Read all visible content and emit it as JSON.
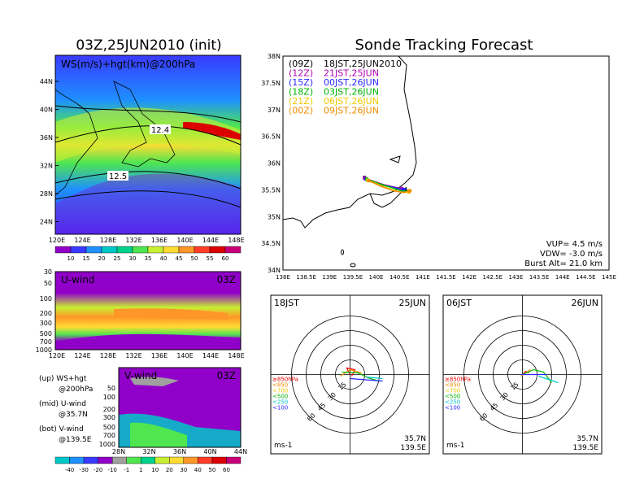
{
  "main_title": "Sonde Tracking Forecast",
  "init_title": "03Z,25JUN2010  (init)",
  "ws_panel": {
    "label": "WS(m/s)+hgt(km)@200hPa",
    "contour_labels": [
      "12.4",
      "12.5"
    ],
    "lat_ticks": [
      "44N",
      "40N",
      "36N",
      "32N",
      "28N",
      "24N"
    ],
    "lon_ticks": [
      "120E",
      "124E",
      "128E",
      "132E",
      "136E",
      "140E",
      "144E",
      "148E"
    ],
    "colorbar": {
      "values": [
        "10",
        "15",
        "20",
        "25",
        "30",
        "35",
        "40",
        "45",
        "50",
        "55",
        "60"
      ],
      "colors": [
        "#9000c8",
        "#3a3aff",
        "#1e90ff",
        "#00c8c8",
        "#00d28c",
        "#50e650",
        "#c8f032",
        "#ffdc32",
        "#ff9628",
        "#ff3c28",
        "#dc0000",
        "#c80078"
      ]
    }
  },
  "u_panel": {
    "label": "U-wind",
    "time": "03Z",
    "y_ticks": [
      "30",
      "50",
      "100",
      "200",
      "300",
      "500",
      "700",
      "1000"
    ],
    "x_ticks": [
      "120E",
      "124E",
      "128E",
      "132E",
      "136E",
      "140E",
      "144E",
      "148E"
    ]
  },
  "v_panel": {
    "label": "V-wind",
    "time": "03Z",
    "y_ticks": [
      "50",
      "100",
      "200",
      "300",
      "500",
      "700",
      "1000"
    ],
    "x_ticks": [
      "28N",
      "32N",
      "36N",
      "40N",
      "44N"
    ]
  },
  "legend_notes": [
    {
      "a": "(up) WS+hgt",
      "b": "@200hPa"
    },
    {
      "a": "(mid) U-wind",
      "b": "@35.7N"
    },
    {
      "a": "(bot) V-wind",
      "b": "@139.5E"
    }
  ],
  "uv_colorbar": {
    "values": [
      "-40",
      "-30",
      "-20",
      "-10",
      "-1",
      "1",
      "10",
      "20",
      "30",
      "40",
      "50",
      "60"
    ],
    "colors": [
      "#00c8c8",
      "#1e90ff",
      "#3a3aff",
      "#9000c8",
      "#a0a0a0",
      "#50e650",
      "#00d28c",
      "#c8f032",
      "#ffdc32",
      "#ff9628",
      "#ff3c28",
      "#dc0000",
      "#c80078"
    ]
  },
  "track_map": {
    "lat_ticks": [
      "38N",
      "37.5N",
      "37N",
      "36.5N",
      "36N",
      "35.5N",
      "35N",
      "34.5N",
      "34N"
    ],
    "lon_ticks": [
      "138E",
      "138.5E",
      "139E",
      "139.5E",
      "140E",
      "140.5E",
      "141E",
      "141.5E",
      "142E",
      "142.5E",
      "143E",
      "143.5E",
      "144E",
      "144.5E",
      "145E"
    ],
    "legend": [
      {
        "code": "(09Z)",
        "text": "18JST,25JUN2010",
        "color": "#000000"
      },
      {
        "code": "(12Z)",
        "text": "21JST,25JUN",
        "color": "#b400b4"
      },
      {
        "code": "(15Z)",
        "text": "00JST,26JUN",
        "color": "#2828ff"
      },
      {
        "code": "(18Z)",
        "text": "03JST,26JUN",
        "color": "#00b400"
      },
      {
        "code": "(21Z)",
        "text": "06JST,26JUN",
        "color": "#f0c800"
      },
      {
        "code": "(00Z)",
        "text": "09JST,26JUN",
        "color": "#f08c00"
      }
    ],
    "vup": "VUP=  4.5 m/s",
    "vdw": "VDW= -3.0 m/s",
    "burst": "Burst Alt= 21.0 km"
  },
  "hodo_left": {
    "time": "18JST",
    "date": "25JUN",
    "ring_labels": [
      "15",
      "30",
      "45",
      "60"
    ],
    "levels": [
      "≥850hPa",
      "<850",
      "<700",
      "<500",
      "<250",
      "<100"
    ],
    "level_colors": [
      "#f00000",
      "#f08c00",
      "#f0c800",
      "#00b400",
      "#00c8c8",
      "#2828ff"
    ],
    "lat": "35.7N",
    "lon": "139.5E",
    "unit": "ms-1"
  },
  "hodo_right": {
    "time": "06JST",
    "date": "26JUN",
    "ring_labels": [
      "15",
      "30",
      "45",
      "60"
    ],
    "levels": [
      "≥850hPa",
      "<850",
      "<700",
      "<500",
      "<250",
      "<100"
    ],
    "level_colors": [
      "#f00000",
      "#f08c00",
      "#f0c800",
      "#00b400",
      "#00c8c8",
      "#2828ff"
    ],
    "lat": "35.7N",
    "lon": "139.5E",
    "unit": "ms-1"
  },
  "chart_data": {
    "type": "line",
    "title": "Sonde Tracking Forecast",
    "series": [
      {
        "name": "18JST,25JUN2010",
        "points": [
          [
            139.75,
            35.73
          ],
          [
            139.9,
            35.65
          ],
          [
            140.1,
            35.6
          ],
          [
            140.35,
            35.55
          ],
          [
            140.62,
            35.5
          ]
        ]
      },
      {
        "name": "21JST,25JUN",
        "points": [
          [
            139.75,
            35.72
          ],
          [
            139.95,
            35.66
          ],
          [
            140.15,
            35.6
          ],
          [
            140.4,
            35.55
          ],
          [
            140.55,
            35.52
          ]
        ]
      },
      {
        "name": "00JST,26JUN",
        "points": [
          [
            139.78,
            35.7
          ],
          [
            140.0,
            35.63
          ],
          [
            140.2,
            35.58
          ],
          [
            140.45,
            35.53
          ],
          [
            140.6,
            35.5
          ]
        ]
      },
      {
        "name": "03JST,26JUN",
        "points": [
          [
            139.8,
            35.7
          ],
          [
            140.05,
            35.62
          ],
          [
            140.3,
            35.55
          ],
          [
            140.55,
            35.48
          ],
          [
            140.7,
            35.47
          ]
        ]
      },
      {
        "name": "06JST,26JUN",
        "points": [
          [
            139.82,
            35.68
          ],
          [
            140.1,
            35.58
          ],
          [
            140.35,
            35.5
          ],
          [
            140.55,
            35.45
          ],
          [
            140.7,
            35.46
          ]
        ]
      },
      {
        "name": "09JST,26JUN",
        "points": [
          [
            139.84,
            35.67
          ],
          [
            140.12,
            35.56
          ],
          [
            140.38,
            35.48
          ],
          [
            140.6,
            35.45
          ],
          [
            140.72,
            35.48
          ]
        ]
      }
    ],
    "xlim": [
      138,
      145
    ],
    "ylim": [
      34,
      38
    ]
  }
}
